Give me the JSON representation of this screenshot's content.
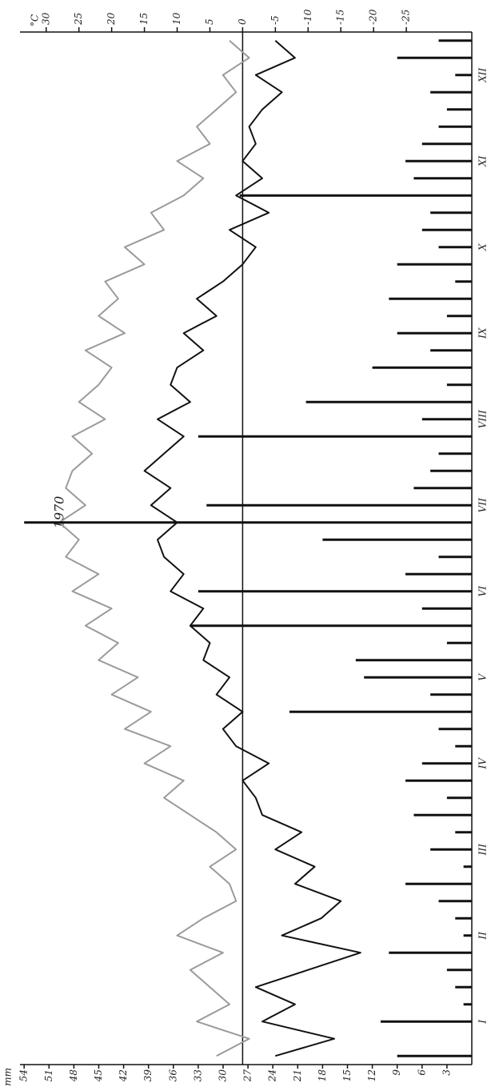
{
  "chart_data": {
    "type": "climate",
    "title": "1970",
    "y_label": "°C",
    "y2_label": "mm",
    "categories": [
      null,
      null,
      "I",
      null,
      null,
      null,
      null,
      "II",
      null,
      null,
      null,
      null,
      "III",
      null,
      null,
      null,
      null,
      "IV",
      null,
      null,
      null,
      null,
      "V",
      null,
      null,
      null,
      null,
      "VI",
      null,
      null,
      null,
      null,
      "VII",
      null,
      null,
      null,
      null,
      "VIII",
      null,
      null,
      null,
      null,
      "IX",
      null,
      null,
      null,
      null,
      "X",
      null,
      null,
      null,
      null,
      "XI",
      null,
      null,
      null,
      null,
      "XII",
      null,
      null
    ],
    "series": [
      {
        "color": "#9a9a9a",
        "axis": "y",
        "values": [
          4,
          -1,
          7,
          2,
          5,
          8,
          3,
          10,
          6,
          1,
          2,
          5,
          1,
          4,
          8,
          12,
          9,
          15,
          11,
          18,
          14,
          20,
          16,
          22,
          19,
          24,
          20,
          26,
          22,
          27,
          25,
          28,
          24,
          27,
          26,
          23,
          26,
          21,
          25,
          22,
          20,
          24,
          18,
          22,
          19,
          21,
          15,
          18,
          12,
          14,
          9,
          6,
          10,
          5,
          7,
          4,
          1,
          3,
          -1,
          2
        ]
      },
      {
        "color": "#111111",
        "axis": "y",
        "values": [
          -5,
          -14,
          -3,
          -8,
          -2,
          -10,
          -18,
          -6,
          -12,
          -15,
          -8,
          -11,
          -5,
          -9,
          -3,
          -2,
          0,
          -4,
          1,
          3,
          0,
          4,
          2,
          6,
          5,
          8,
          6,
          11,
          9,
          12,
          13,
          10,
          14,
          11,
          15,
          12,
          9,
          13,
          8,
          11,
          10,
          6,
          9,
          4,
          7,
          3,
          0,
          -2,
          2,
          -4,
          1,
          -3,
          0,
          -2,
          -1,
          -3,
          -6,
          -2,
          -8,
          -5
        ]
      },
      {
        "color": "#111111",
        "axis": "y2",
        "values": [
          9,
          0,
          11,
          1,
          2,
          3,
          10,
          1,
          2,
          4,
          8,
          1,
          5,
          2,
          7,
          3,
          8,
          6,
          2,
          4,
          22,
          5,
          13,
          14,
          3,
          34,
          6,
          33,
          8,
          4,
          18,
          54,
          32,
          7,
          5,
          4,
          33,
          6,
          20,
          3,
          12,
          5,
          9,
          3,
          10,
          2,
          9,
          4,
          6,
          5,
          28,
          7,
          8,
          6,
          4,
          3,
          5,
          2,
          9,
          4
        ]
      }
    ],
    "ylim": [
      -35,
      34
    ],
    "yticks": [
      30,
      25,
      20,
      15,
      10,
      5,
      0,
      -5,
      -10,
      -15,
      -20,
      -25
    ],
    "y2lim": [
      0,
      54.5
    ],
    "y2ticks": [
      54,
      51,
      48,
      45,
      42,
      39,
      36,
      33,
      30,
      27,
      24,
      21,
      18,
      15,
      12,
      9,
      6,
      3
    ],
    "zero_line": true
  }
}
